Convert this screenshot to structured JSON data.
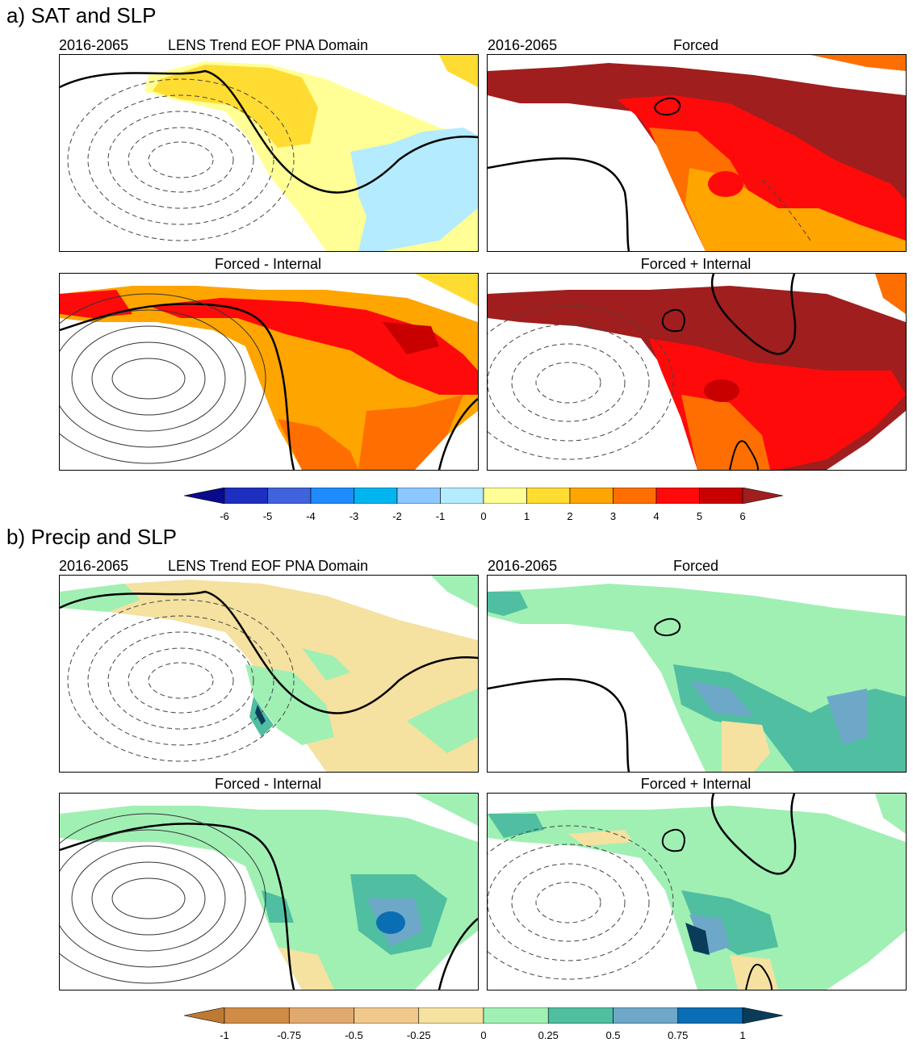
{
  "sections": [
    {
      "title": "a) SAT and SLP",
      "panels": [
        {
          "period": "2016-2065",
          "title": "LENS Trend EOF PNA Domain"
        },
        {
          "period": "2016-2065",
          "title": "Forced"
        },
        {
          "period": "",
          "title": "Forced - Internal"
        },
        {
          "period": "",
          "title": "Forced + Internal"
        }
      ],
      "colorbar": {
        "ticks": [
          "-6",
          "-5",
          "-4",
          "-3",
          "-2",
          "-1",
          "0",
          "1",
          "2",
          "3",
          "4",
          "5",
          "6"
        ],
        "colors": [
          "#0a0a8c",
          "#1e2fbf",
          "#3e63dc",
          "#1e8cff",
          "#00b4f0",
          "#8cc8ff",
          "#b4ebff",
          "#ffff96",
          "#ffdc32",
          "#ffa500",
          "#ff6e00",
          "#ff0a0a",
          "#c80000",
          "#a01e1e"
        ]
      }
    },
    {
      "title": "b) Precip and SLP",
      "panels": [
        {
          "period": "2016-2065",
          "title": "LENS Trend EOF PNA Domain"
        },
        {
          "period": "2016-2065",
          "title": "Forced"
        },
        {
          "period": "",
          "title": "Forced - Internal"
        },
        {
          "period": "",
          "title": "Forced + Internal"
        }
      ],
      "colorbar": {
        "ticks": [
          "-1",
          "-0.75",
          "-0.5",
          "-0.25",
          "0",
          "0.25",
          "0.5",
          "0.75",
          "1"
        ],
        "colors": [
          "#bf7a32",
          "#d08c46",
          "#e0aa6e",
          "#f0c88c",
          "#f5e1a0",
          "#a0f0b4",
          "#50beA0",
          "#6ea8c8",
          "#0a6eb4",
          "#0a3c5a"
        ]
      }
    }
  ]
}
